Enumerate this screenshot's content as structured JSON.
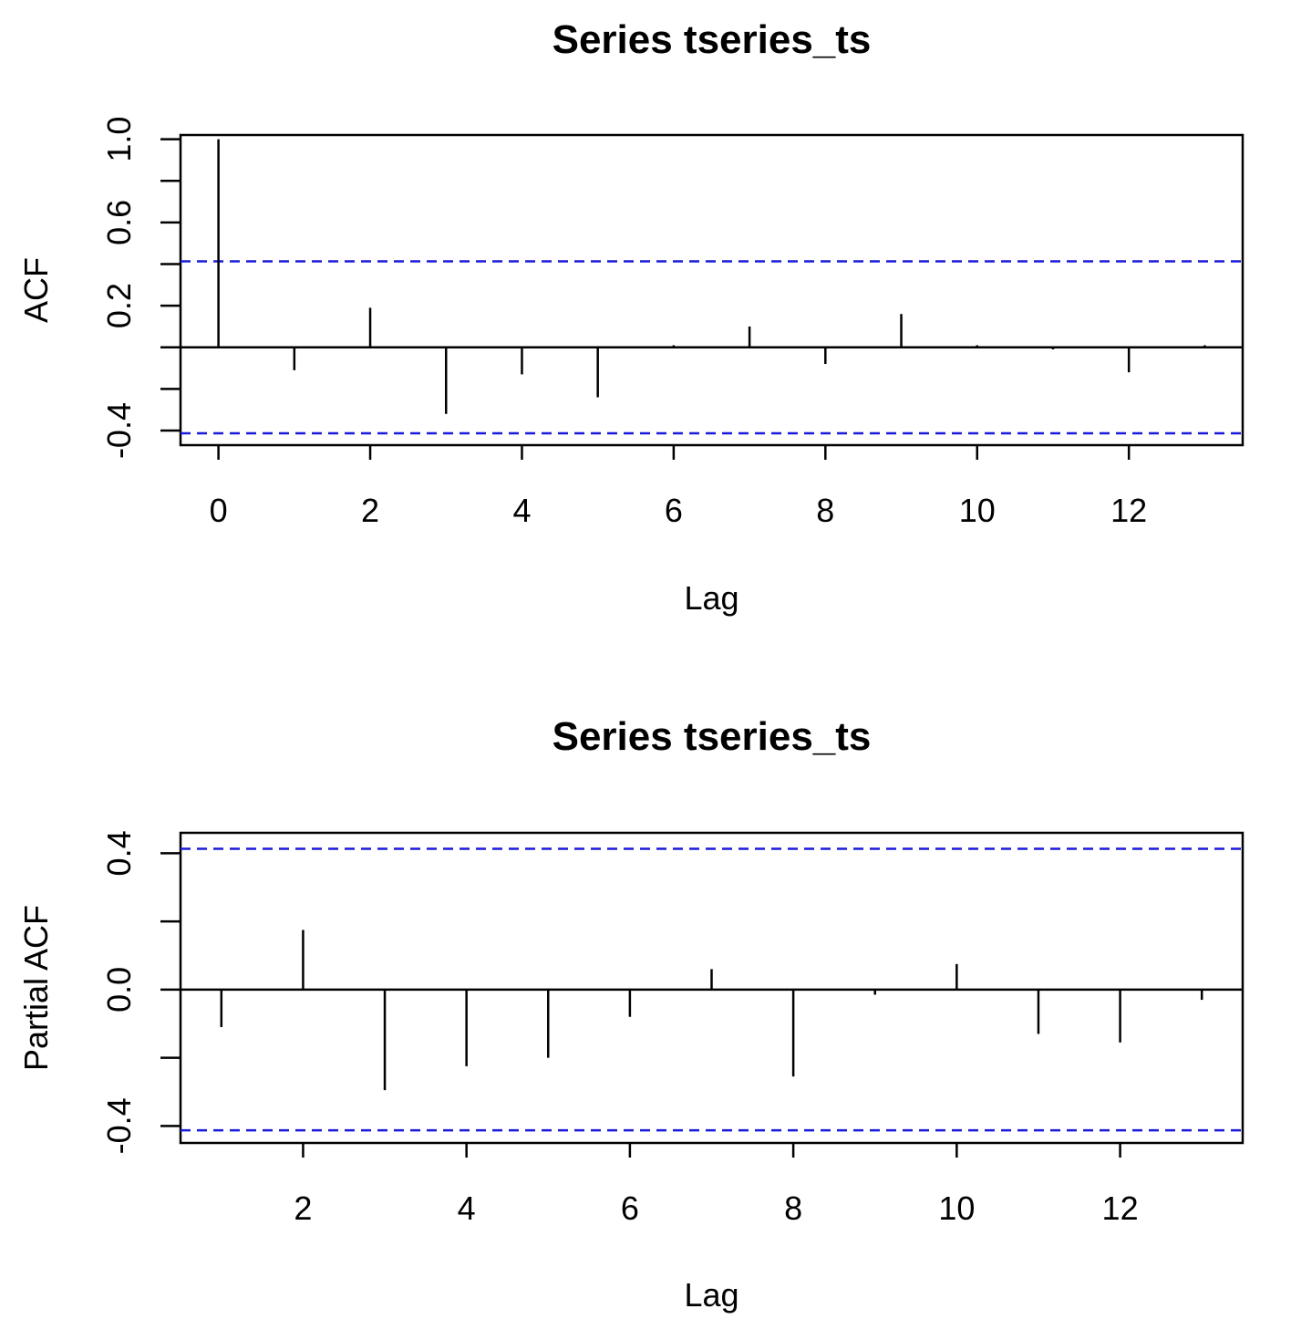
{
  "colors": {
    "confidence_band": "#1a1adb",
    "spike": "#000000",
    "frame": "#000000"
  },
  "chart_data": [
    {
      "type": "bar",
      "title": "Series  tseries_ts",
      "xlabel": "Lag",
      "ylabel": "ACF",
      "xlim": [
        -0.5,
        13.5
      ],
      "ylim": [
        -0.47,
        1.02
      ],
      "x_ticks": [
        0,
        2,
        4,
        6,
        8,
        10,
        12
      ],
      "x_tick_labels": [
        "0",
        "2",
        "4",
        "6",
        "8",
        "10",
        "12"
      ],
      "y_ticks": [
        -0.4,
        -0.2,
        0.0,
        0.2,
        0.4,
        0.6,
        0.8,
        1.0
      ],
      "y_tick_labels": [
        "-0.4",
        "",
        "",
        "0.2",
        "",
        "0.6",
        "",
        "1.0"
      ],
      "confidence_bound": 0.413,
      "series": [
        {
          "x": [
            0,
            1,
            2,
            3,
            4,
            5,
            6,
            7,
            8,
            9,
            10,
            11,
            12,
            13
          ],
          "values": [
            1.0,
            -0.11,
            0.19,
            -0.32,
            -0.13,
            -0.24,
            0.01,
            0.1,
            -0.08,
            0.16,
            0.01,
            -0.01,
            -0.12,
            0.01
          ]
        }
      ],
      "grid": false
    },
    {
      "type": "bar",
      "title": "Series  tseries_ts",
      "xlabel": "Lag",
      "ylabel": "Partial ACF",
      "xlim": [
        0.5,
        13.5
      ],
      "ylim": [
        -0.45,
        0.46
      ],
      "x_ticks": [
        2,
        4,
        6,
        8,
        10,
        12
      ],
      "x_tick_labels": [
        "2",
        "4",
        "6",
        "8",
        "10",
        "12"
      ],
      "y_ticks": [
        -0.4,
        -0.2,
        0.0,
        0.2,
        0.4
      ],
      "y_tick_labels": [
        "-0.4",
        "",
        "0.0",
        "",
        "0.4"
      ],
      "confidence_bound": 0.413,
      "series": [
        {
          "x": [
            1,
            2,
            3,
            4,
            5,
            6,
            7,
            8,
            9,
            10,
            11,
            12,
            13
          ],
          "values": [
            -0.11,
            0.175,
            -0.295,
            -0.225,
            -0.2,
            -0.08,
            0.06,
            -0.255,
            -0.015,
            0.075,
            -0.13,
            -0.155,
            -0.03
          ]
        }
      ],
      "grid": false
    }
  ]
}
